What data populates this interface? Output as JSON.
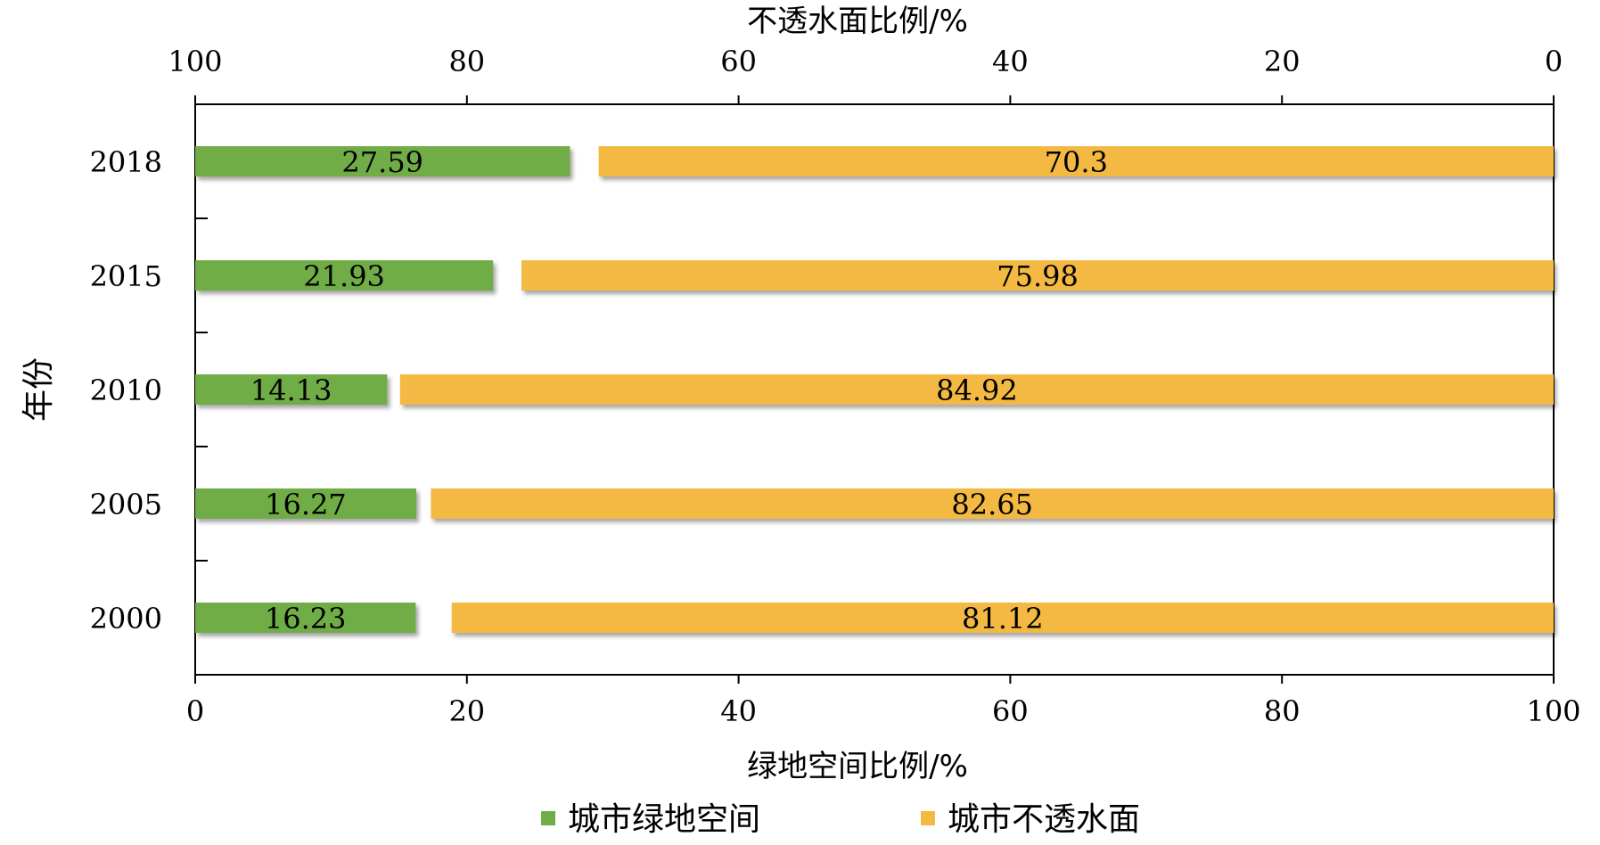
{
  "chart_data": {
    "type": "bar",
    "orientation": "horizontal",
    "categories": [
      "2018",
      "2015",
      "2010",
      "2005",
      "2000"
    ],
    "series": [
      {
        "name": "城市绿地空间",
        "values": [
          27.59,
          21.93,
          14.13,
          16.27,
          16.23
        ],
        "color": "#70ad47",
        "axis": "bottom",
        "direction": "left-to-right"
      },
      {
        "name": "城市不透水面",
        "values": [
          70.3,
          75.98,
          84.92,
          82.65,
          81.12
        ],
        "color": "#f4b942",
        "axis": "top",
        "direction": "right-to-left"
      }
    ],
    "xlabel_bottom": "绿地空间比例/%",
    "xlabel_top": "不透水面比例/%",
    "ylabel": "年份",
    "xlim": [
      0,
      100
    ],
    "bottom_ticks": [
      "0",
      "20",
      "40",
      "60",
      "80",
      "100"
    ],
    "top_ticks": [
      "100",
      "80",
      "60",
      "40",
      "20",
      "0"
    ],
    "legend_position": "bottom-center",
    "grid": false
  }
}
